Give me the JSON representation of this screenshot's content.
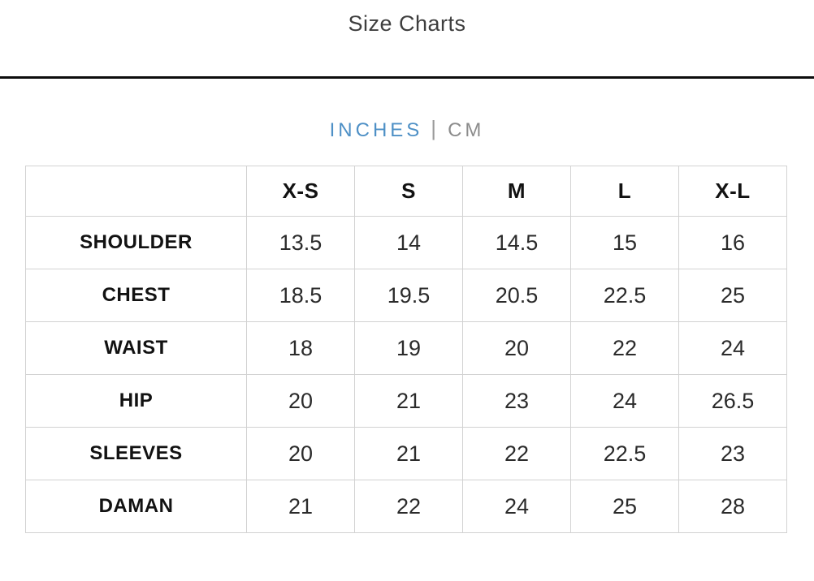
{
  "page": {
    "title": "Size Charts"
  },
  "unit_toggle": {
    "inches_label": "INCHES",
    "separator": "|",
    "cm_label": "CM",
    "active_unit": "INCHES"
  },
  "size_table": {
    "columns": [
      "X-S",
      "S",
      "M",
      "L",
      "X-L"
    ],
    "rows": [
      {
        "label": "SHOULDER",
        "values": [
          "13.5",
          "14",
          "14.5",
          "15",
          "16"
        ]
      },
      {
        "label": "CHEST",
        "values": [
          "18.5",
          "19.5",
          "20.5",
          "22.5",
          "25"
        ]
      },
      {
        "label": "WAIST",
        "values": [
          "18",
          "19",
          "20",
          "22",
          "24"
        ]
      },
      {
        "label": "HIP",
        "values": [
          "20",
          "21",
          "23",
          "24",
          "26.5"
        ]
      },
      {
        "label": "SLEEVES",
        "values": [
          "20",
          "21",
          "22",
          "22.5",
          "23"
        ]
      },
      {
        "label": "DAMAN",
        "values": [
          "21",
          "22",
          "24",
          "25",
          "28"
        ]
      }
    ]
  },
  "colors": {
    "accent_blue": "#4e90c6",
    "inactive_gray": "#8c8c8c",
    "table_border": "#d2d2d2",
    "divider_black": "#0d0d0d",
    "title_text": "#3e3e3e",
    "cell_text": "#2b2b2b"
  }
}
